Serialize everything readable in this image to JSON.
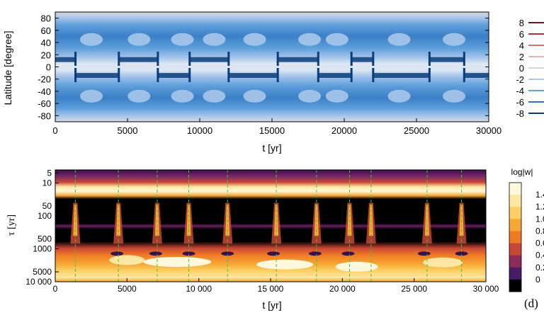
{
  "chart_data": [
    {
      "type": "heatmap",
      "panel": "top",
      "xlabel": "t [yr]",
      "ylabel": "Latitude [degree]",
      "x_ticks": [
        0,
        5000,
        10000,
        15000,
        20000,
        25000,
        30000
      ],
      "y_ticks": [
        80,
        60,
        40,
        20,
        0,
        -20,
        -40,
        -60,
        -80
      ],
      "xlim": [
        0,
        30000
      ],
      "ylim": [
        -90,
        90
      ],
      "colorbar": {
        "ticks": [
          8,
          6,
          4,
          2,
          0,
          -2,
          -4,
          -6,
          -8
        ],
        "colors": [
          "#7a1020",
          "#b5323e",
          "#d96f6f",
          "#f0b0a8",
          "#cfd8e8",
          "#a9c6ea",
          "#5f9fdb",
          "#2f72bf",
          "#0b3d7a"
        ]
      },
      "background_color": "#4a90d0",
      "features": {
        "equator_band_color": "#dce6f3",
        "polarity_reversal_times": [
          1400,
          4400,
          7100,
          9300,
          12000,
          15400,
          18200,
          20500,
          22000,
          25900,
          28300
        ]
      }
    },
    {
      "type": "heatmap",
      "panel": "bottom",
      "xlabel": "t [yr]",
      "ylabel": "τ [yr]",
      "yscale": "log",
      "x_ticks": [
        0,
        5000,
        10000,
        15000,
        20000,
        25000,
        30000
      ],
      "x_tick_labels": [
        "0",
        "5000",
        "10 000",
        "15 000",
        "20 000",
        "25 000",
        "30 000"
      ],
      "y_ticks": [
        5,
        10,
        50,
        100,
        500,
        1000,
        5000,
        10000
      ],
      "y_tick_labels": [
        "5",
        "10",
        "50",
        "100",
        "500",
        "1000",
        "5000",
        "10 000"
      ],
      "xlim": [
        0,
        30000
      ],
      "ylim": [
        4,
        10000
      ],
      "colorbar": {
        "title": "log|w|",
        "ticks": [
          1.4,
          1.2,
          1.0,
          0.8,
          0.6,
          0.4,
          0.2,
          0
        ],
        "tick_labels": [
          "1.4",
          "1.2",
          "1.0",
          "0.8",
          "0.6",
          "0.4",
          "0.2",
          "0"
        ],
        "colors": [
          "#fff8dc",
          "#fde7a2",
          "#fbcf63",
          "#f7a734",
          "#ef7a26",
          "#c84634",
          "#8a2b5c",
          "#4a1a6a",
          "#000000"
        ]
      },
      "annotation": "(d)",
      "dashed_line_times": [
        1400,
        4400,
        7100,
        9300,
        12000,
        15400,
        18200,
        20500,
        22000,
        25900,
        28300
      ]
    }
  ]
}
